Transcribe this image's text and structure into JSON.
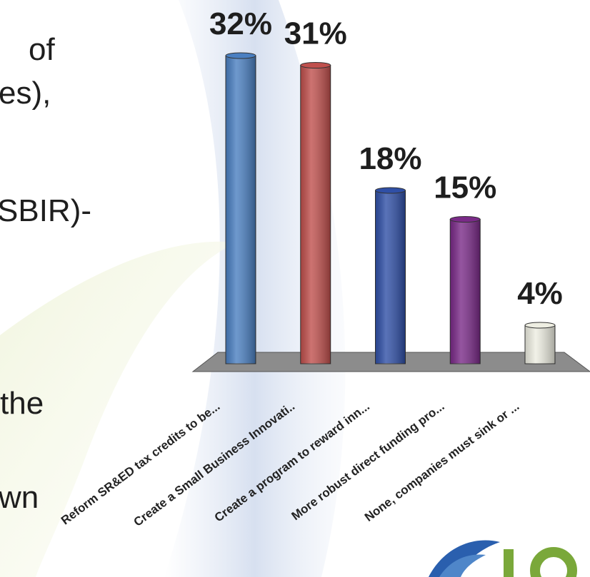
{
  "slide_text": [
    "of",
    "es),",
    "SBIR)-",
    "the",
    "wn"
  ],
  "chart_data": {
    "type": "bar",
    "categories": [
      "Reform SR&ED tax credits to be...",
      "Create a Small Business Innovati..",
      "Create a program to reward inn...",
      "More robust direct funding pro...",
      "None, companies must sink or ..."
    ],
    "values": [
      32,
      31,
      18,
      15,
      4
    ],
    "value_labels": [
      "32%",
      "31%",
      "18%",
      "15%",
      "4%"
    ],
    "colors": [
      "#4a7fc1",
      "#c0504d",
      "#2f4fa6",
      "#7a2a88",
      "#eeeee2"
    ]
  }
}
